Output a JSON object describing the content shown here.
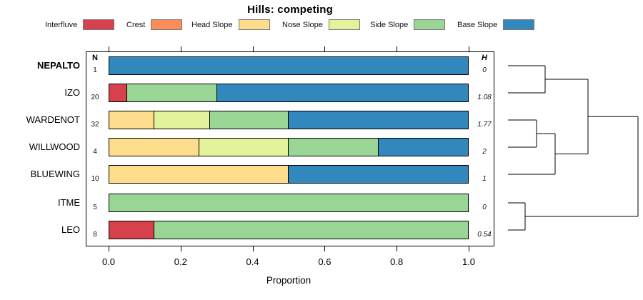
{
  "title": "Hills: competing",
  "legend": {
    "items": [
      {
        "label": "Interfluve",
        "color_key": "Interfluve"
      },
      {
        "label": "Crest",
        "color_key": "Crest"
      },
      {
        "label": "Head Slope",
        "color_key": "Head Slope"
      },
      {
        "label": "Nose Slope",
        "color_key": "Nose Slope"
      },
      {
        "label": "Side Slope",
        "color_key": "Side Slope"
      },
      {
        "label": "Base Slope",
        "color_key": "Base Slope"
      }
    ]
  },
  "colors": {
    "Interfluve": "#D7414E",
    "Crest": "#FC8D59",
    "Head Slope": "#FDDC8B",
    "Nose Slope": "#E3F39B",
    "Side Slope": "#99D594",
    "Base Slope": "#3288BD"
  },
  "columns": {
    "n_header": "N",
    "h_header": "H"
  },
  "axis": {
    "label": "Proportion",
    "tick_labels": [
      "0.0",
      "0.2",
      "0.4",
      "0.6",
      "0.8",
      "1.0"
    ],
    "tick_values": [
      0,
      0.2,
      0.4,
      0.6,
      0.8,
      1.0
    ],
    "range": [
      0,
      1
    ]
  },
  "rows": [
    {
      "label": "NEPALTO",
      "bold": true,
      "n": "1",
      "h": "0",
      "segments": [
        {
          "class": "Base Slope",
          "value": 1.0
        }
      ]
    },
    {
      "label": "IZO",
      "bold": false,
      "n": "20",
      "h": "1.08",
      "segments": [
        {
          "class": "Interfluve",
          "value": 0.05
        },
        {
          "class": "Side Slope",
          "value": 0.25
        },
        {
          "class": "Base Slope",
          "value": 0.7
        }
      ]
    },
    {
      "label": "WARDENOT",
      "bold": false,
      "n": "32",
      "h": "1.77",
      "segments": [
        {
          "class": "Head Slope",
          "value": 0.125
        },
        {
          "class": "Nose Slope",
          "value": 0.15625
        },
        {
          "class": "Side Slope",
          "value": 0.21875
        },
        {
          "class": "Base Slope",
          "value": 0.5
        }
      ]
    },
    {
      "label": "WILLWOOD",
      "bold": false,
      "n": "4",
      "h": "2",
      "segments": [
        {
          "class": "Head Slope",
          "value": 0.25
        },
        {
          "class": "Nose Slope",
          "value": 0.25
        },
        {
          "class": "Side Slope",
          "value": 0.25
        },
        {
          "class": "Base Slope",
          "value": 0.25
        }
      ]
    },
    {
      "label": "BLUEWING",
      "bold": false,
      "n": "10",
      "h": "1",
      "segments": [
        {
          "class": "Head Slope",
          "value": 0.5
        },
        {
          "class": "Base Slope",
          "value": 0.5
        }
      ]
    },
    {
      "label": "ITME",
      "bold": false,
      "n": "5",
      "h": "0",
      "segments": [
        {
          "class": "Side Slope",
          "value": 1.0
        }
      ]
    },
    {
      "label": "LEO",
      "bold": false,
      "n": "8",
      "h": "0.54",
      "segments": [
        {
          "class": "Interfluve",
          "value": 0.125
        },
        {
          "class": "Side Slope",
          "value": 0.875
        }
      ]
    }
  ],
  "chart_data": {
    "type": "bar",
    "orientation": "horizontal-stacked",
    "title": "Hills: competing",
    "xlabel": "Proportion",
    "xlim": [
      0,
      1
    ],
    "categories": [
      "NEPALTO",
      "IZO",
      "WARDENOT",
      "WILLWOOD",
      "BLUEWING",
      "ITME",
      "LEO"
    ],
    "n_values": [
      1,
      20,
      32,
      4,
      10,
      5,
      8
    ],
    "h_values": [
      0,
      1.08,
      1.77,
      2,
      1,
      0,
      0.54
    ],
    "series": [
      {
        "name": "Interfluve",
        "values": [
          0,
          0.05,
          0,
          0,
          0,
          0,
          0.125
        ]
      },
      {
        "name": "Crest",
        "values": [
          0,
          0,
          0,
          0,
          0,
          0,
          0
        ]
      },
      {
        "name": "Head Slope",
        "values": [
          0,
          0,
          0.125,
          0.25,
          0.5,
          0,
          0
        ]
      },
      {
        "name": "Nose Slope",
        "values": [
          0,
          0,
          0.15625,
          0.25,
          0,
          0,
          0
        ]
      },
      {
        "name": "Side Slope",
        "values": [
          0,
          0.25,
          0.21875,
          0.25,
          0,
          1.0,
          0.875
        ]
      },
      {
        "name": "Base Slope",
        "values": [
          1.0,
          0.7,
          0.5,
          0.25,
          0.5,
          0,
          0
        ]
      }
    ],
    "legend_position": "top",
    "grid": false
  },
  "dendrogram": {
    "leaves": [
      "NEPALTO",
      "IZO",
      "WARDENOT",
      "WILLWOOD",
      "BLUEWING",
      "ITME",
      "LEO"
    ],
    "structure": "(((NEPALTO,IZO),((WARDENOT,WILLWOOD),BLUEWING)),(ITME,LEO))",
    "segments": [
      [
        19,
        92,
        71,
        92
      ],
      [
        19,
        130,
        71,
        130
      ],
      [
        71,
        92,
        71,
        130
      ],
      [
        71,
        111,
        131,
        111
      ],
      [
        19,
        168,
        59,
        168
      ],
      [
        19,
        206,
        59,
        206
      ],
      [
        59,
        168,
        59,
        206
      ],
      [
        59,
        187,
        85,
        187
      ],
      [
        19,
        244,
        85,
        244
      ],
      [
        85,
        187,
        85,
        244
      ],
      [
        85,
        215.5,
        131,
        215.5
      ],
      [
        131,
        111,
        131,
        215.5
      ],
      [
        131,
        163.25,
        201,
        163.25
      ],
      [
        19,
        284,
        43,
        284
      ],
      [
        19,
        322,
        43,
        322
      ],
      [
        43,
        284,
        43,
        322
      ],
      [
        43,
        303,
        201,
        303
      ],
      [
        201,
        163.25,
        201,
        303
      ]
    ]
  }
}
